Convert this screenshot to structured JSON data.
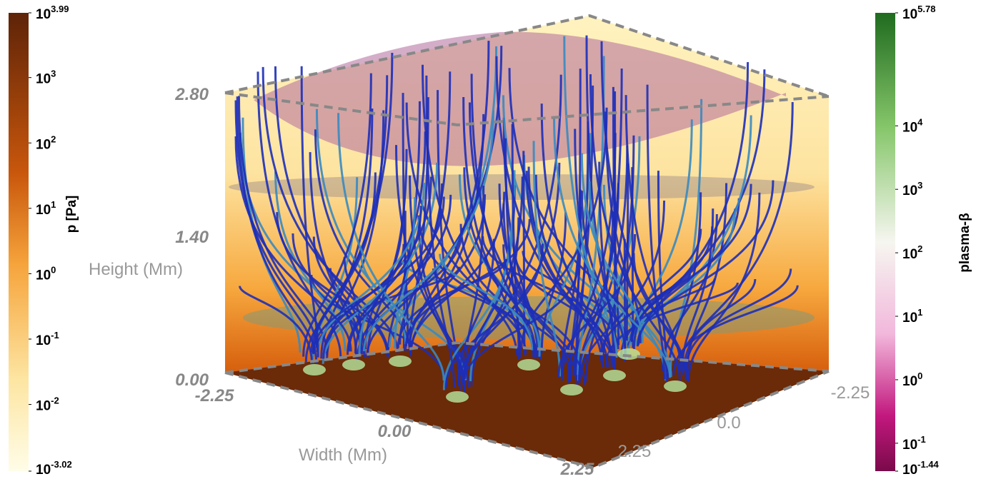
{
  "pressure_colorbar": {
    "title": "p [Pa]",
    "base": "10",
    "ticks": [
      3.99,
      3,
      2,
      1,
      0,
      -1,
      -2,
      -3.02
    ]
  },
  "beta_colorbar": {
    "title": "plasma-β",
    "base": "10",
    "ticks": [
      5.78,
      4,
      3,
      2,
      1,
      0,
      -1,
      -1.44
    ]
  },
  "height_axis": {
    "label": "Height (Mm)",
    "ticks": [
      "2.80",
      "1.40",
      "0.00"
    ]
  },
  "width_axis": {
    "label": "Width (Mm)",
    "ticks": [
      "-2.25",
      "0.00",
      "2.25"
    ]
  },
  "depth_axis": {
    "ticks": [
      "-2.25",
      "0.0",
      "2.25"
    ]
  }
}
